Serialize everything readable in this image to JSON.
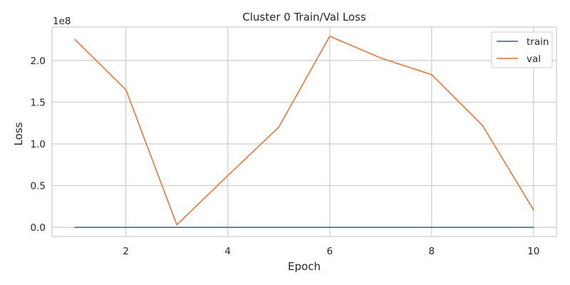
{
  "chart_data": {
    "type": "line",
    "title": "Cluster 0 Train/Val Loss",
    "xlabel": "Epoch",
    "ylabel": "Loss",
    "y_offset_label": "1e8",
    "x": [
      1,
      2,
      3,
      4,
      5,
      6,
      7,
      8,
      9,
      10
    ],
    "xlim": [
      0.55,
      10.45
    ],
    "ylim": [
      -0.11,
      2.4
    ],
    "xticks": [
      2,
      4,
      6,
      8,
      10
    ],
    "xtick_labels": [
      "2",
      "4",
      "6",
      "8",
      "10"
    ],
    "yticks": [
      0,
      0.5,
      1.0,
      1.5,
      2.0
    ],
    "ytick_labels": [
      "0.0",
      "0.5",
      "1.0",
      "1.5",
      "2.0"
    ],
    "y_unit_scale": "1e8",
    "grid": true,
    "legend_position": "top-right",
    "series": [
      {
        "name": "train",
        "color": "#4c72b0",
        "values": [
          0.0,
          0.0,
          0.0,
          0.0,
          0.0,
          0.0,
          0.0,
          0.0,
          0.0,
          0.0
        ]
      },
      {
        "name": "val",
        "color": "#dd8452",
        "values": [
          2.25,
          1.65,
          0.03,
          0.62,
          1.2,
          2.29,
          2.03,
          1.83,
          1.22,
          0.21
        ]
      }
    ]
  }
}
